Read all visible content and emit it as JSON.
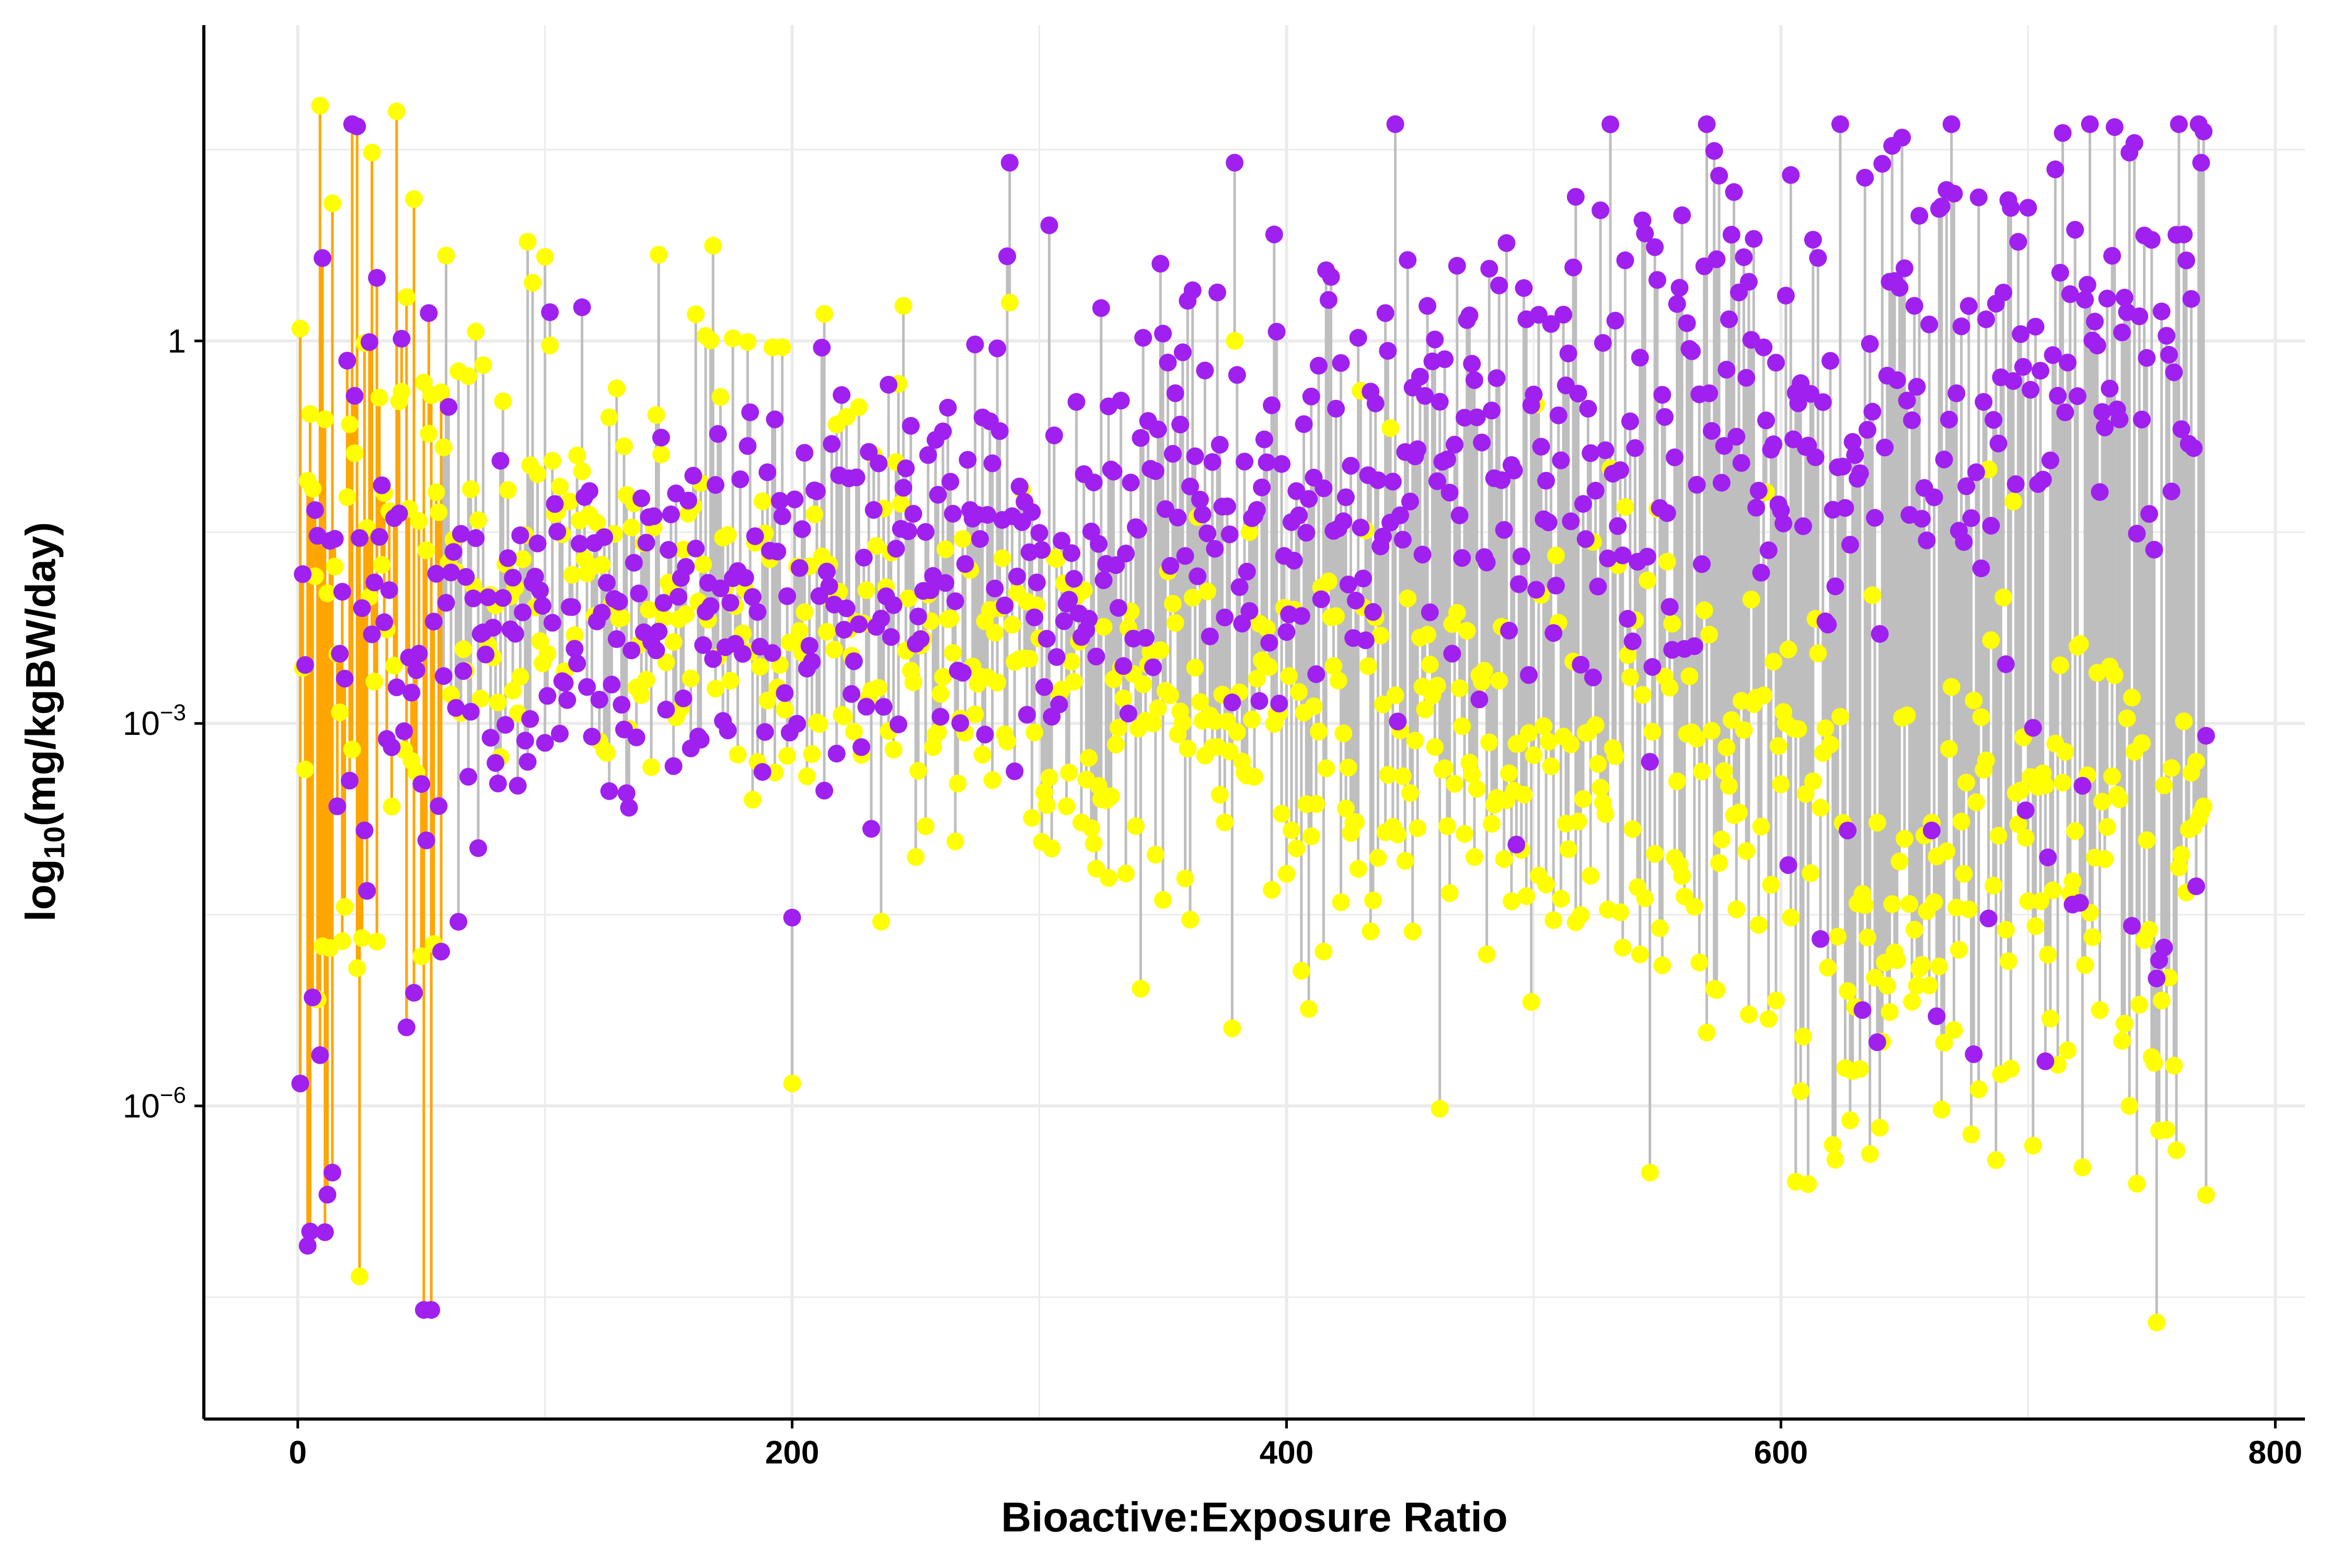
{
  "chart_data": {
    "type": "scatter",
    "subtype": "lollipop",
    "xlabel": "Bioactive:Exposure Ratio",
    "ylabel_prefix": "log",
    "ylabel_sub": "10",
    "ylabel_suffix": "(mg/kgBW/day)",
    "x_ticks": [
      {
        "value": 0,
        "label": "0"
      },
      {
        "value": 200,
        "label": "200"
      },
      {
        "value": 400,
        "label": "400"
      },
      {
        "value": 600,
        "label": "600"
      },
      {
        "value": 800,
        "label": "800"
      }
    ],
    "y_ticks": [
      {
        "value": 1,
        "base": "1",
        "exp": ""
      },
      {
        "value": 0.001,
        "base": "10",
        "exp": "−3"
      },
      {
        "value": 1e-06,
        "base": "10",
        "exp": "−6"
      }
    ],
    "xlim": [
      -38,
      812
    ],
    "ylim": [
      3.5e-09,
      300
    ],
    "y_scale": "log",
    "grid": true,
    "legend": "none",
    "colors": {
      "bioactive_point": "#a020f0",
      "exposure_point": "#ffff00",
      "segment_low_ratio": "#ffa500",
      "segment_high_ratio": "#bebebe",
      "gridline": "#ebebeb"
    },
    "point_count": 772,
    "segment_color_threshold": 58,
    "pairs_sample": [
      {
        "x": 1,
        "bioactive": 1.5e-06,
        "exposure": 1.25
      },
      {
        "x": 4,
        "bioactive": 8e-08,
        "exposure": 0.08
      },
      {
        "x": 9,
        "bioactive": 2.5e-06,
        "exposure": 70
      },
      {
        "x": 14,
        "bioactive": 3e-07,
        "exposure": 12
      },
      {
        "x": 30,
        "bioactive": 0.005,
        "exposure": 30
      },
      {
        "x": 93,
        "bioactive": 0.0005,
        "exposure": 6
      },
      {
        "x": 200,
        "bioactive": 3e-05,
        "exposure": 1.5e-06
      },
      {
        "x": 288,
        "bioactive": 25,
        "exposure": 2
      },
      {
        "x": 379,
        "bioactive": 25,
        "exposure": 1
      },
      {
        "x": 531,
        "bioactive": 50,
        "exposure": 0.1
      },
      {
        "x": 547,
        "bioactive": 0.0005,
        "exposure": 3e-07
      },
      {
        "x": 604,
        "bioactive": 20,
        "exposure": 3e-05
      },
      {
        "x": 741,
        "bioactive": 30,
        "exposure": 1e-06
      },
      {
        "x": 752,
        "bioactive": 1e-05,
        "exposure": 2e-08
      },
      {
        "x": 770,
        "bioactive": 25,
        "exposure": 0.0002
      },
      {
        "x": 772,
        "bioactive": 0.0008,
        "exposure": 2e-07
      }
    ]
  }
}
